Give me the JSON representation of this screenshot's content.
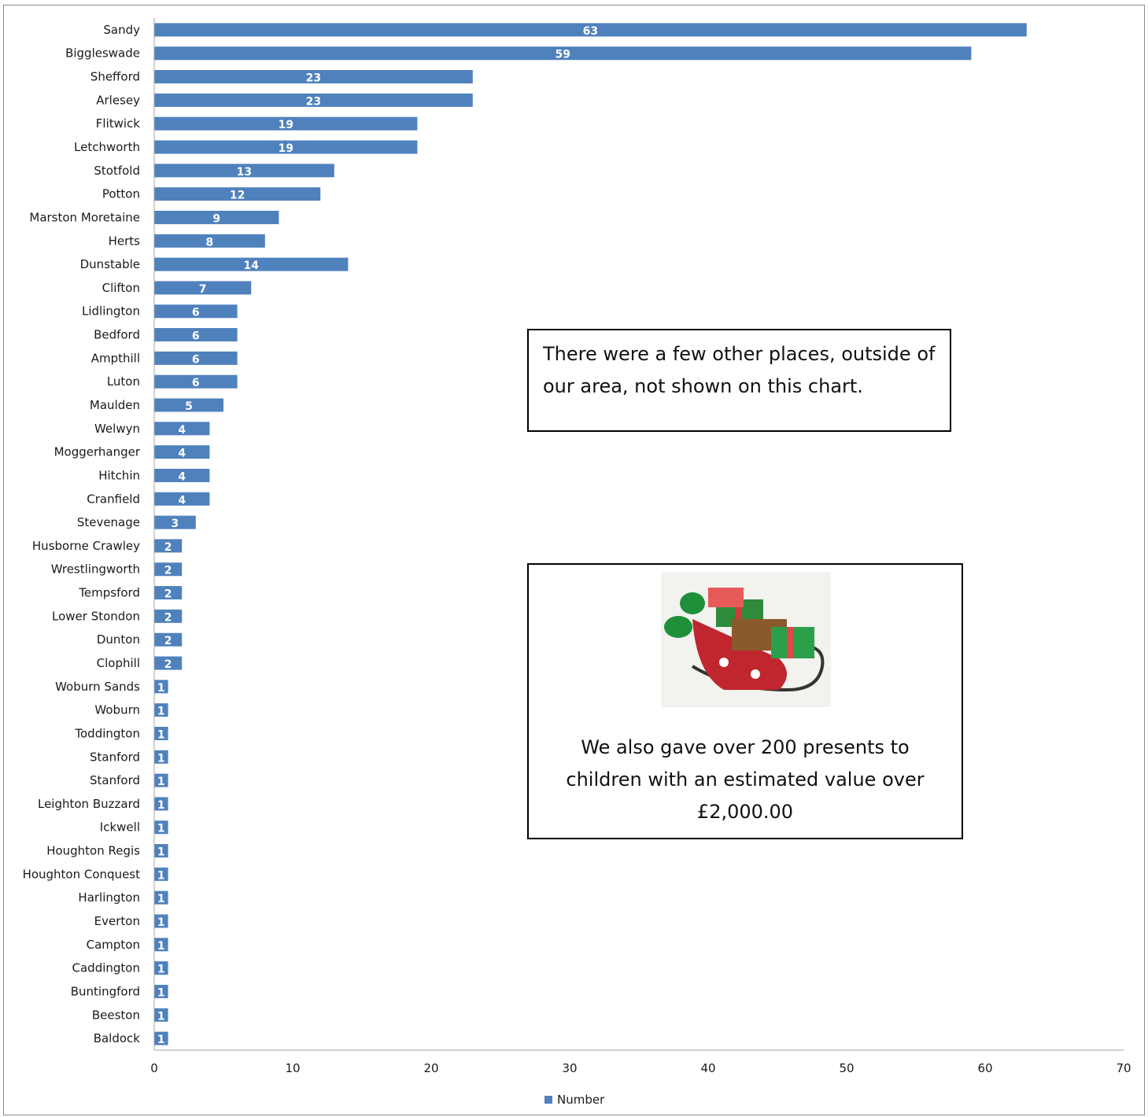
{
  "chart_data": {
    "type": "bar",
    "orientation": "horizontal",
    "categories": [
      "Sandy",
      "Biggleswade",
      "Shefford",
      "Arlesey",
      "Flitwick",
      "Letchworth",
      "Stotfold",
      "Potton",
      "Marston Moretaine",
      "Herts",
      "Dunstable",
      "Clifton",
      "Lidlington",
      "Bedford",
      "Ampthill",
      "Luton",
      "Maulden",
      "Welwyn",
      "Moggerhanger",
      "Hitchin",
      "Cranfield",
      "Stevenage",
      "Husborne Crawley",
      "Wrestlingworth",
      "Tempsford",
      "Lower Stondon",
      "Dunton",
      "Clophill",
      "Woburn Sands",
      "Woburn",
      "Toddington",
      "Stanford",
      "Stanford",
      "Leighton Buzzard",
      "Ickwell",
      "Houghton Regis",
      "Houghton Conquest",
      "Harlington",
      "Everton",
      "Campton",
      "Caddington",
      "Buntingford",
      "Beeston",
      "Baldock"
    ],
    "series": [
      {
        "name": "Number",
        "values": [
          63,
          59,
          23,
          23,
          19,
          19,
          13,
          12,
          9,
          8,
          14,
          7,
          6,
          6,
          6,
          6,
          5,
          4,
          4,
          4,
          4,
          3,
          2,
          2,
          2,
          2,
          2,
          2,
          1,
          1,
          1,
          1,
          1,
          1,
          1,
          1,
          1,
          1,
          1,
          1,
          1,
          1,
          1,
          1
        ]
      }
    ],
    "xlim": [
      0,
      70
    ],
    "xticks": [
      "0",
      "10",
      "20",
      "30",
      "40",
      "50",
      "60",
      "70"
    ],
    "grid": false,
    "data_labels": true,
    "legend_position": "bottom",
    "color": "#4f81bd"
  },
  "annotations": {
    "note": "There were a few other places, outside of our area, not shown on this chart.",
    "gift_text": "We also gave over 200 presents to children with an estimated value over £2,000.00",
    "gift_picture": "sleigh-with-presents-picture"
  },
  "legend": {
    "label": "Number"
  }
}
